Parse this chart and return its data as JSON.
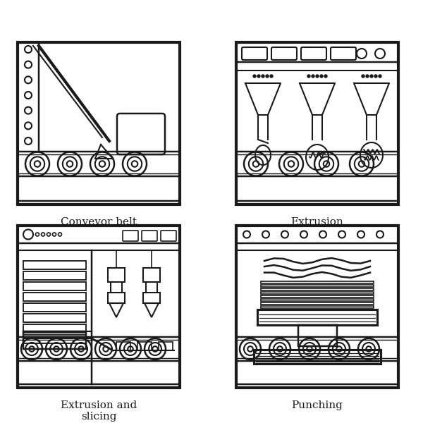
{
  "labels": [
    "Conveyor belt",
    "Extrusion",
    "Extrusion and\nslicing",
    "Punching"
  ],
  "bg_color": "#ffffff",
  "line_color": "#1a1a1a",
  "lw": 1.5,
  "fig_size": [
    6.0,
    6.0
  ],
  "dpi": 100
}
